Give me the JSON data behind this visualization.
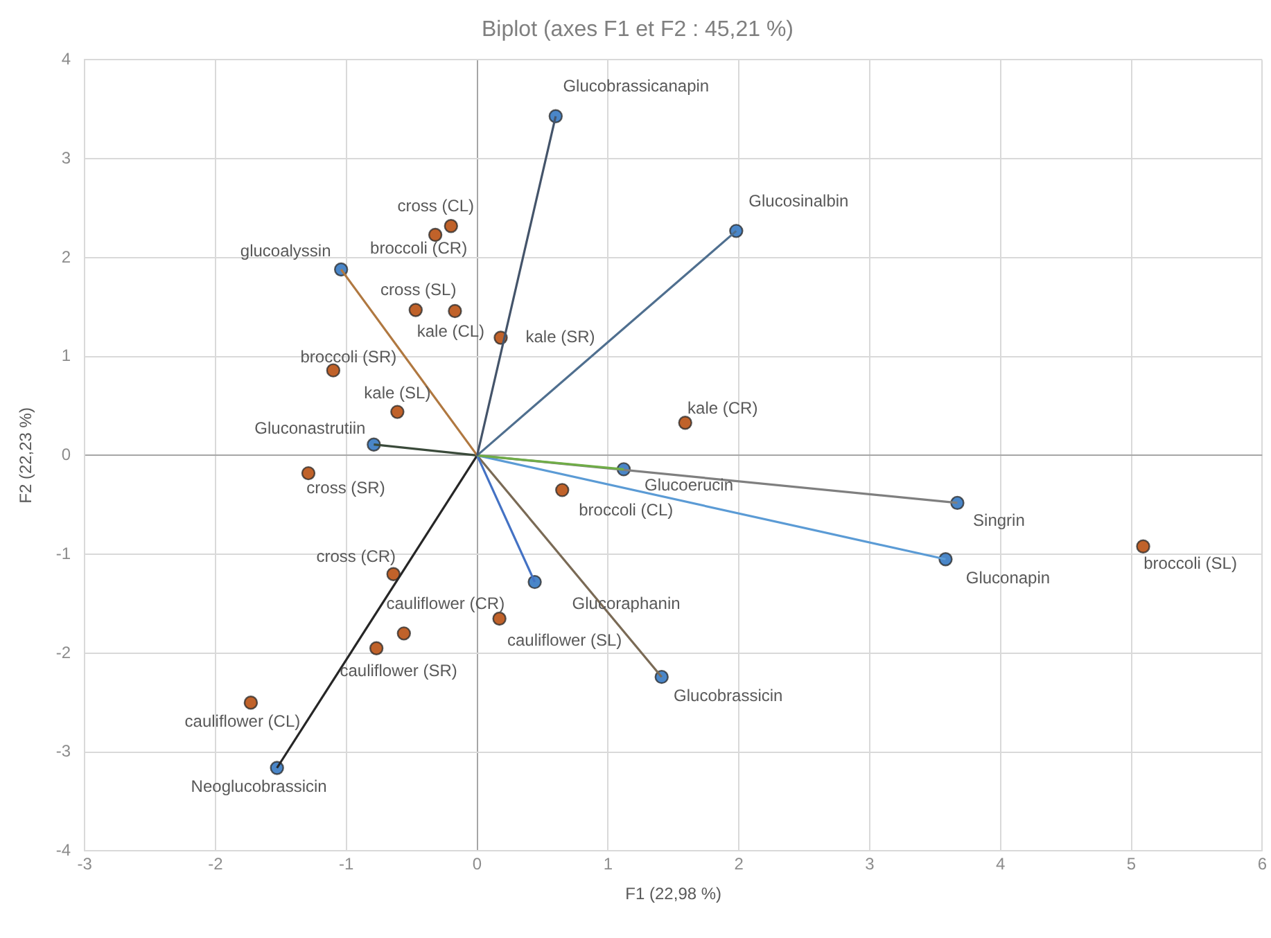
{
  "chart_data": {
    "type": "scatter",
    "title": "Biplot (axes F1 et F2 : 45,21 %)",
    "xlabel": "F1 (22,98 %)",
    "ylabel": "F2 (22,23 %)",
    "xlim": [
      -3,
      6
    ],
    "xticks": [
      -3,
      -2,
      -1,
      0,
      1,
      2,
      3,
      4,
      5,
      6
    ],
    "ylim": [
      -4,
      4
    ],
    "yticks": [
      -4,
      -3,
      -2,
      -1,
      0,
      1,
      2,
      3,
      4
    ],
    "grid": true,
    "series": [
      {
        "type": "line",
        "marker": "none",
        "color": "#44546a",
        "x": [
          0,
          0.6
        ],
        "values": [
          0,
          3.43
        ]
      },
      {
        "type": "line",
        "marker": "none",
        "color": "#4f6f8f",
        "x": [
          0,
          1.98
        ],
        "values": [
          0,
          2.27
        ]
      },
      {
        "type": "line",
        "marker": "none",
        "color": "#b07840",
        "x": [
          0,
          -1.04
        ],
        "values": [
          0,
          1.88
        ]
      },
      {
        "type": "line",
        "marker": "none",
        "color": "#3a4a3a",
        "x": [
          0,
          -0.79
        ],
        "values": [
          0,
          0.11
        ]
      },
      {
        "type": "line",
        "marker": "none",
        "color": "#70ad47",
        "x": [
          0,
          1.12
        ],
        "values": [
          0,
          -0.14
        ]
      },
      {
        "type": "line",
        "marker": "none",
        "color": "#7f7f7f",
        "x": [
          0,
          3.67
        ],
        "values": [
          0,
          -0.48
        ]
      },
      {
        "type": "line",
        "marker": "none",
        "color": "#5b9bd5",
        "x": [
          0,
          3.58
        ],
        "values": [
          0,
          -1.05
        ]
      },
      {
        "type": "line",
        "marker": "none",
        "color": "#4472c4",
        "x": [
          0,
          0.44
        ],
        "values": [
          0,
          -1.28
        ]
      },
      {
        "type": "line",
        "marker": "none",
        "color": "#7a6a55",
        "x": [
          0,
          1.41
        ],
        "values": [
          0,
          -2.24
        ]
      },
      {
        "type": "line",
        "marker": "none",
        "color": "#262626",
        "x": [
          0,
          -1.53
        ],
        "values": [
          0,
          -3.16
        ]
      },
      {
        "type": "scatter",
        "marker": "circle",
        "color": "#4a86c8",
        "x": [
          0.6,
          1.98,
          -1.04,
          -0.79,
          1.12,
          3.67,
          3.58,
          0.44,
          1.41,
          -1.53
        ],
        "values": [
          3.43,
          2.27,
          1.88,
          0.11,
          -0.14,
          -0.48,
          -1.05,
          -1.28,
          -2.24,
          -3.16
        ]
      },
      {
        "type": "scatter",
        "marker": "circle",
        "color": "#c0622a",
        "x": [
          -0.2,
          -0.32,
          -0.47,
          -0.17,
          0.18,
          -1.1,
          -0.61,
          1.59,
          -1.29,
          0.65,
          5.09,
          -0.64,
          -0.56,
          -0.77,
          0.17,
          -1.73
        ],
        "values": [
          2.32,
          2.23,
          1.47,
          1.46,
          1.19,
          0.86,
          0.44,
          0.33,
          -0.18,
          -0.35,
          -0.92,
          -1.2,
          -1.8,
          -1.95,
          -1.65,
          -2.5
        ]
      }
    ],
    "annotations": [
      {
        "text": "Glucobrassicanapin",
        "x": 0.6,
        "y": 3.43
      },
      {
        "text": "Glucosinalbin",
        "x": 1.98,
        "y": 2.27
      },
      {
        "text": "glucoalyssin",
        "x": -1.04,
        "y": 1.88
      },
      {
        "text": "Gluconastrutiin",
        "x": -0.79,
        "y": 0.11
      },
      {
        "text": "Glucoerucin",
        "x": 1.12,
        "y": -0.14
      },
      {
        "text": "Singrin",
        "x": 3.67,
        "y": -0.48
      },
      {
        "text": "Gluconapin",
        "x": 3.58,
        "y": -1.05
      },
      {
        "text": "Glucoraphanin",
        "x": 0.44,
        "y": -1.28
      },
      {
        "text": "Glucobrassicin",
        "x": 1.41,
        "y": -2.24
      },
      {
        "text": "Neoglucobrassicin",
        "x": -1.53,
        "y": -3.16
      },
      {
        "text": "cross (CL)",
        "x": -0.2,
        "y": 2.32
      },
      {
        "text": "broccoli (CR)",
        "x": -0.32,
        "y": 2.23
      },
      {
        "text": "cross (SL)",
        "x": -0.47,
        "y": 1.47
      },
      {
        "text": "kale (CL)",
        "x": -0.17,
        "y": 1.46
      },
      {
        "text": "kale (SR)",
        "x": 0.18,
        "y": 1.19
      },
      {
        "text": "broccoli (SR)",
        "x": -1.1,
        "y": 0.86
      },
      {
        "text": "kale (SL)",
        "x": -0.61,
        "y": 0.44
      },
      {
        "text": "kale (CR)",
        "x": 1.59,
        "y": 0.33
      },
      {
        "text": "cross (SR)",
        "x": -1.29,
        "y": -0.18
      },
      {
        "text": "broccoli (CL)",
        "x": 0.65,
        "y": -0.35
      },
      {
        "text": "broccoli (SL)",
        "x": 5.09,
        "y": -0.92
      },
      {
        "text": "cross (CR)",
        "x": -0.64,
        "y": -1.2
      },
      {
        "text": "cauliflower (CR)",
        "x": -0.56,
        "y": -1.8
      },
      {
        "text": "cauliflower (SR)",
        "x": -0.77,
        "y": -1.95
      },
      {
        "text": "cauliflower (SL)",
        "x": 0.17,
        "y": -1.65
      },
      {
        "text": "cauliflower (CL)",
        "x": -1.73,
        "y": -2.5
      }
    ]
  }
}
